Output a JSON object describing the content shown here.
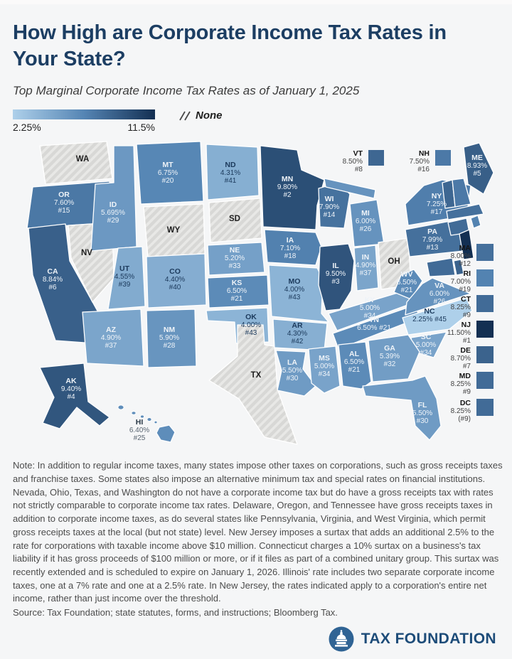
{
  "header": {
    "title": "How High are Corporate Income Tax Rates in Your State?",
    "subtitle": "Top Marginal Corporate Income Tax Rates as of January 1, 2025"
  },
  "legend": {
    "min_label": "2.25%",
    "max_label": "11.5%",
    "none_label": "None",
    "min_color": "#aed0ea",
    "mid_color": "#5585b4",
    "max_color": "#132f52",
    "none_color": "#d8d8d6",
    "none_stripe_color": "#e8e8e6"
  },
  "chart_data": {
    "type": "choropleth_map",
    "title": "How High are Corporate Income Tax Rates in Your State?",
    "subtitle": "Top Marginal Corporate Income Tax Rates as of January 1, 2025",
    "unit": "percent",
    "scale": {
      "min": 2.25,
      "max": 11.5
    },
    "no_tax_note": "None",
    "states": [
      {
        "abbr": "WA",
        "none": true
      },
      {
        "abbr": "OR",
        "rate": 7.6,
        "rate_label": "7.60%",
        "rank_label": "#15"
      },
      {
        "abbr": "CA",
        "rate": 8.84,
        "rate_label": "8.84%",
        "rank_label": "#6"
      },
      {
        "abbr": "NV",
        "none": true
      },
      {
        "abbr": "ID",
        "rate": 5.695,
        "rate_label": "5.695%",
        "rank_label": "#29"
      },
      {
        "abbr": "MT",
        "rate": 6.75,
        "rate_label": "6.75%",
        "rank_label": "#20"
      },
      {
        "abbr": "WY",
        "none": true
      },
      {
        "abbr": "UT",
        "rate": 4.55,
        "rate_label": "4.55%",
        "rank_label": "#39"
      },
      {
        "abbr": "CO",
        "rate": 4.4,
        "rate_label": "4.40%",
        "rank_label": "#40"
      },
      {
        "abbr": "AZ",
        "rate": 4.9,
        "rate_label": "4.90%",
        "rank_label": "#37"
      },
      {
        "abbr": "NM",
        "rate": 5.9,
        "rate_label": "5.90%",
        "rank_label": "#28"
      },
      {
        "abbr": "ND",
        "rate": 4.31,
        "rate_label": "4.31%",
        "rank_label": "#41"
      },
      {
        "abbr": "SD",
        "none": true
      },
      {
        "abbr": "NE",
        "rate": 5.2,
        "rate_label": "5.20%",
        "rank_label": "#33"
      },
      {
        "abbr": "KS",
        "rate": 6.5,
        "rate_label": "6.50%",
        "rank_label": "#21"
      },
      {
        "abbr": "OK",
        "rate": 4.0,
        "rate_label": "4.00%",
        "rank_label": "#43"
      },
      {
        "abbr": "TX",
        "none": true
      },
      {
        "abbr": "MN",
        "rate": 9.8,
        "rate_label": "9.80%",
        "rank_label": "#2"
      },
      {
        "abbr": "IA",
        "rate": 7.1,
        "rate_label": "7.10%",
        "rank_label": "#18"
      },
      {
        "abbr": "MO",
        "rate": 4.0,
        "rate_label": "4.00%",
        "rank_label": "#43"
      },
      {
        "abbr": "AR",
        "rate": 4.3,
        "rate_label": "4.30%",
        "rank_label": "#42"
      },
      {
        "abbr": "LA",
        "rate": 5.5,
        "rate_label": "5.50%",
        "rank_label": "#30"
      },
      {
        "abbr": "WI",
        "rate": 7.9,
        "rate_label": "7.90%",
        "rank_label": "#14"
      },
      {
        "abbr": "IL",
        "rate": 9.5,
        "rate_label": "9.50%",
        "rank_label": "#3"
      },
      {
        "abbr": "MI",
        "rate": 6.0,
        "rate_label": "6.00%",
        "rank_label": "#26"
      },
      {
        "abbr": "IN",
        "rate": 4.9,
        "rate_label": "4.90%",
        "rank_label": "#37"
      },
      {
        "abbr": "OH",
        "none": true
      },
      {
        "abbr": "KY",
        "rate": 5.0,
        "rate_label": "5.00%",
        "rank_label": "#34"
      },
      {
        "abbr": "TN",
        "rate": 6.5,
        "rate_label": "6.50%",
        "rank_label": "#21"
      },
      {
        "abbr": "WV",
        "rate": 6.5,
        "rate_label": "6.50%",
        "rank_label": "#21"
      },
      {
        "abbr": "VA",
        "rate": 6.0,
        "rate_label": "6.00%",
        "rank_label": "#26"
      },
      {
        "abbr": "NC",
        "rate": 2.25,
        "rate_label": "2.25%",
        "rank_label": "#45"
      },
      {
        "abbr": "SC",
        "rate": 5.0,
        "rate_label": "5.00%",
        "rank_label": "#34"
      },
      {
        "abbr": "GA",
        "rate": 5.39,
        "rate_label": "5.39%",
        "rank_label": "#32"
      },
      {
        "abbr": "AL",
        "rate": 6.5,
        "rate_label": "6.50%",
        "rank_label": "#21"
      },
      {
        "abbr": "MS",
        "rate": 5.0,
        "rate_label": "5.00%",
        "rank_label": "#34"
      },
      {
        "abbr": "FL",
        "rate": 5.5,
        "rate_label": "5.50%",
        "rank_label": "#30"
      },
      {
        "abbr": "PA",
        "rate": 7.99,
        "rate_label": "7.99%",
        "rank_label": "#13"
      },
      {
        "abbr": "NY",
        "rate": 7.25,
        "rate_label": "7.25%",
        "rank_label": "#17"
      },
      {
        "abbr": "ME",
        "rate": 8.93,
        "rate_label": "8.93%",
        "rank_label": "#5"
      },
      {
        "abbr": "VT",
        "rate": 8.5,
        "rate_label": "8.50%",
        "rank_label": "#8"
      },
      {
        "abbr": "NH",
        "rate": 7.5,
        "rate_label": "7.50%",
        "rank_label": "#16"
      },
      {
        "abbr": "MA",
        "rate": 8.0,
        "rate_label": "8.00%",
        "rank_label": "#12"
      },
      {
        "abbr": "RI",
        "rate": 7.0,
        "rate_label": "7.00%",
        "rank_label": "#19"
      },
      {
        "abbr": "CT",
        "rate": 8.25,
        "rate_label": "8.25%",
        "rank_label": "#9"
      },
      {
        "abbr": "NJ",
        "rate": 11.5,
        "rate_label": "11.50%",
        "rank_label": "#1"
      },
      {
        "abbr": "DE",
        "rate": 8.7,
        "rate_label": "8.70%",
        "rank_label": "#7"
      },
      {
        "abbr": "MD",
        "rate": 8.25,
        "rate_label": "8.25%",
        "rank_label": "#9"
      },
      {
        "abbr": "DC",
        "rate": 8.25,
        "rate_label": "8.25%",
        "rank_label": "(#9)"
      },
      {
        "abbr": "AK",
        "rate": 9.4,
        "rate_label": "9.40%",
        "rank_label": "#4"
      },
      {
        "abbr": "HI",
        "rate": 6.4,
        "rate_label": "6.40%",
        "rank_label": "#25"
      }
    ]
  },
  "notes": {
    "text": "Note: In addition to regular income taxes, many states impose other taxes on corporations, such as gross receipts taxes and franchise taxes. Some states also impose an alternative minimum tax and special rates on financial institutions. Nevada, Ohio, Texas, and Washington do not have a corporate income tax but do have a gross receipts tax with rates not strictly comparable to corporate income tax rates. Delaware, Oregon, and Tennessee have gross receipts taxes in addition to corporate income taxes, as do several states like Pennsylvania, Virginia, and West Virginia, which permit gross receipts taxes at the local (but not state) level. New Jersey imposes a surtax that adds an additional 2.5% to the rate for corporations with taxable income above $10 million. Connecticut charges a 10% surtax on a business's tax liability if it has gross proceeds of $100 million or more, or if it files as part of a combined unitary group. This surtax was recently extended and is scheduled to expire on January 1, 2026. Illinois' rate includes two separate corporate income taxes, one at a 7% rate and one at a 2.5% rate. In New Jersey, the rates indicated apply to a corporation's entire net income, rather than just income over the threshold.",
    "source": "Source: Tax Foundation; state statutes, forms, and instructions; Bloomberg Tax."
  },
  "footer": {
    "logo_text": "TAX FOUNDATION"
  }
}
